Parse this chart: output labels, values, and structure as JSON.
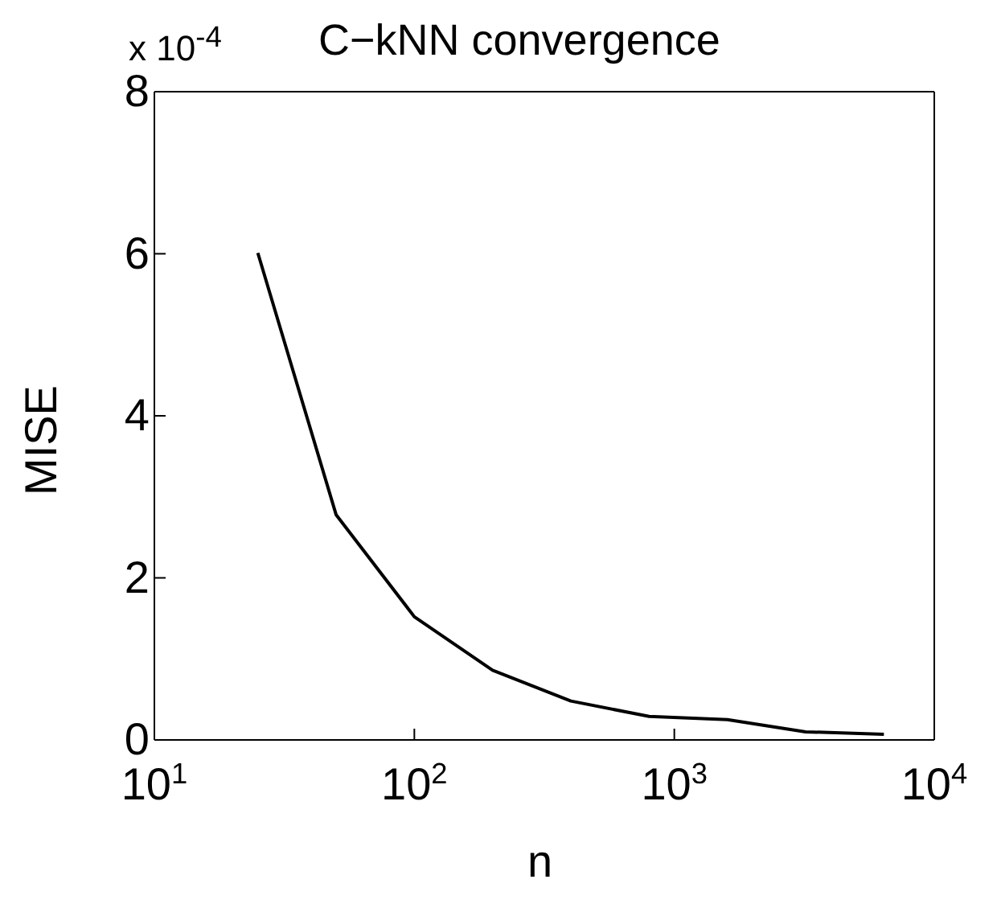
{
  "chart_data": {
    "type": "line",
    "title": "C−kNN convergence",
    "xlabel": "n",
    "ylabel": "MISE",
    "annotations": [
      "x 10$^{-4}$"
    ],
    "x": [
      25,
      50,
      100,
      200,
      400,
      800,
      1600,
      3200,
      6400
    ],
    "series": [
      {
        "color": "#000000",
        "values": [
          6.01,
          2.78,
          1.52,
          0.86,
          0.48,
          0.29,
          0.25,
          0.1,
          0.07
        ]
      }
    ],
    "log": "x",
    "xlim": [
      10,
      10000
    ],
    "xticks": [
      {
        "value": 10,
        "label": "10$^{1}$"
      },
      {
        "value": 100,
        "label": "10$^{2}$"
      },
      {
        "value": 1000,
        "label": "10$^{3}$"
      },
      {
        "value": 10000,
        "label": "10$^{4}$"
      }
    ],
    "ylim": [
      0,
      8
    ],
    "yticks": [
      0,
      2,
      4,
      6,
      8
    ],
    "grid": false,
    "legend": false,
    "marker": "none",
    "line_style": "solid"
  }
}
